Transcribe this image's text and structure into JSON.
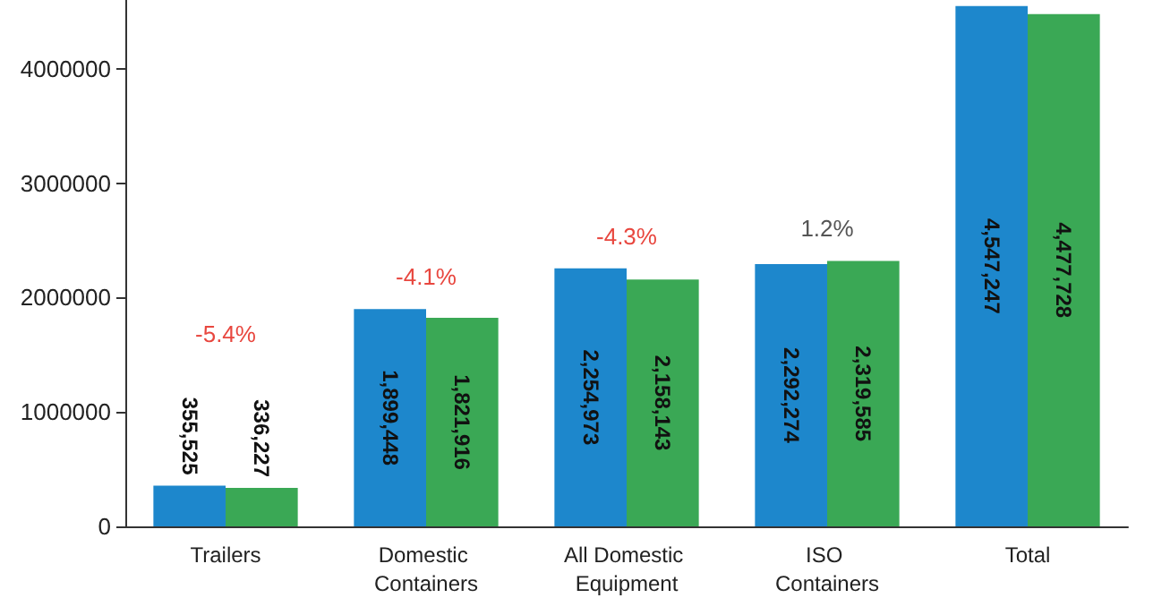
{
  "chart_data": {
    "type": "bar",
    "categories": [
      "Trailers",
      "Domestic Containers",
      "All Domestic Equipment",
      "ISO Containers",
      "Total"
    ],
    "series": [
      {
        "color": "#1d87cc",
        "values": [
          355525,
          1899448,
          2254973,
          2292274,
          4547247
        ],
        "value_labels": [
          "355,525",
          "1,899,448",
          "2,254,973",
          "2,292,274",
          "4,547,247"
        ]
      },
      {
        "color": "#3aa855",
        "values": [
          336227,
          1821916,
          2158143,
          2319585,
          4477728
        ],
        "value_labels": [
          "336,227",
          "1,821,916",
          "2,158,143",
          "2,319,585",
          "4,477,728"
        ]
      }
    ],
    "ylim": [
      0,
      4600000
    ],
    "yticks": [
      0,
      1000000,
      2000000,
      3000000,
      4000000
    ],
    "grid": false,
    "annotations": [
      "-5.4%",
      "-4.1%",
      "-4.3%",
      "1.2%"
    ]
  }
}
